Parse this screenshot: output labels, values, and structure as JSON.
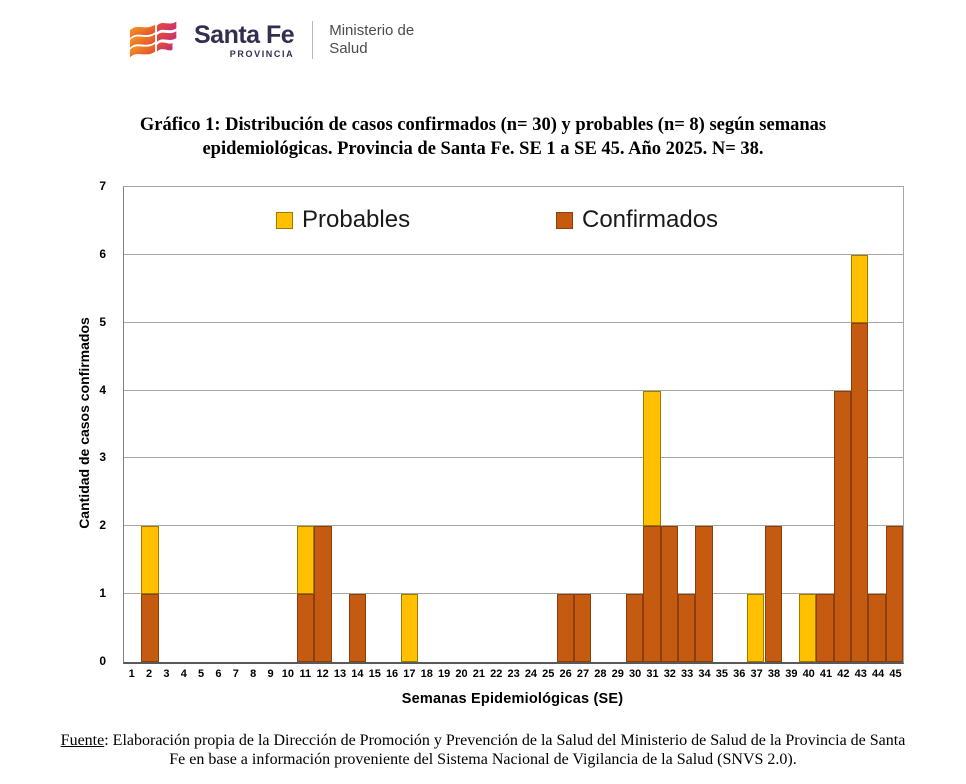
{
  "header": {
    "brand": "Santa Fe",
    "brand_sub": "PROVINCIA",
    "ministry_line1": "Ministerio de",
    "ministry_line2": "Salud"
  },
  "title": {
    "line1": "Gráfico 1: Distribución de casos confirmados (n= 30) y probables (n= 8) según semanas",
    "line2": "epidemiológicas. Provincia de Santa Fe. SE 1 a SE 45. Año 2025. N= 38."
  },
  "chart_data": {
    "type": "bar",
    "stacked": true,
    "categories": [
      "1",
      "2",
      "3",
      "4",
      "5",
      "6",
      "7",
      "8",
      "9",
      "10",
      "11",
      "12",
      "13",
      "14",
      "15",
      "16",
      "17",
      "18",
      "19",
      "20",
      "21",
      "22",
      "23",
      "24",
      "25",
      "26",
      "27",
      "28",
      "29",
      "30",
      "31",
      "32",
      "33",
      "34",
      "35",
      "36",
      "37",
      "38",
      "39",
      "40",
      "41",
      "42",
      "43",
      "44",
      "45"
    ],
    "series": [
      {
        "name": "Confirmados",
        "n": 30,
        "color": "#C55A11",
        "border_color": "#8C3F08",
        "values": [
          0,
          1,
          0,
          0,
          0,
          0,
          0,
          0,
          0,
          0,
          1,
          2,
          0,
          1,
          0,
          0,
          0,
          0,
          0,
          0,
          0,
          0,
          0,
          0,
          0,
          1,
          1,
          0,
          0,
          1,
          2,
          2,
          1,
          2,
          0,
          0,
          0,
          2,
          0,
          0,
          1,
          4,
          5,
          1,
          2
        ]
      },
      {
        "name": "Probables",
        "n": 8,
        "color": "#FFC000",
        "border_color": "#9C7A00",
        "values": [
          0,
          1,
          0,
          0,
          0,
          0,
          0,
          0,
          0,
          0,
          1,
          0,
          0,
          0,
          0,
          0,
          1,
          0,
          0,
          0,
          0,
          0,
          0,
          0,
          0,
          0,
          0,
          0,
          0,
          0,
          2,
          0,
          0,
          0,
          0,
          0,
          1,
          0,
          0,
          1,
          0,
          0,
          1,
          0,
          0
        ]
      }
    ],
    "total_n": 38,
    "legend": {
      "position": "top-inside",
      "order": [
        "Probables",
        "Confirmados"
      ]
    },
    "xlabel": "Semanas Epidemiológicas (SE)",
    "ylabel": "Cantidad de casos confirmados",
    "ylim": [
      0,
      7
    ],
    "yticks": [
      0,
      1,
      2,
      3,
      4,
      5,
      6,
      7
    ],
    "grid": "horizontal",
    "grid_color": "#A6A6A6",
    "axis_color": "#595959"
  },
  "footer": {
    "source_label": "Fuente",
    "line1_rest": ": Elaboración propia de la Dirección de Promoción y Prevención de la Salud del Ministerio de Salud de la Provincia de Santa",
    "line2": "Fe en base a información proveniente del Sistema Nacional de Vigilancia de la Salud (SNVS 2.0)."
  }
}
